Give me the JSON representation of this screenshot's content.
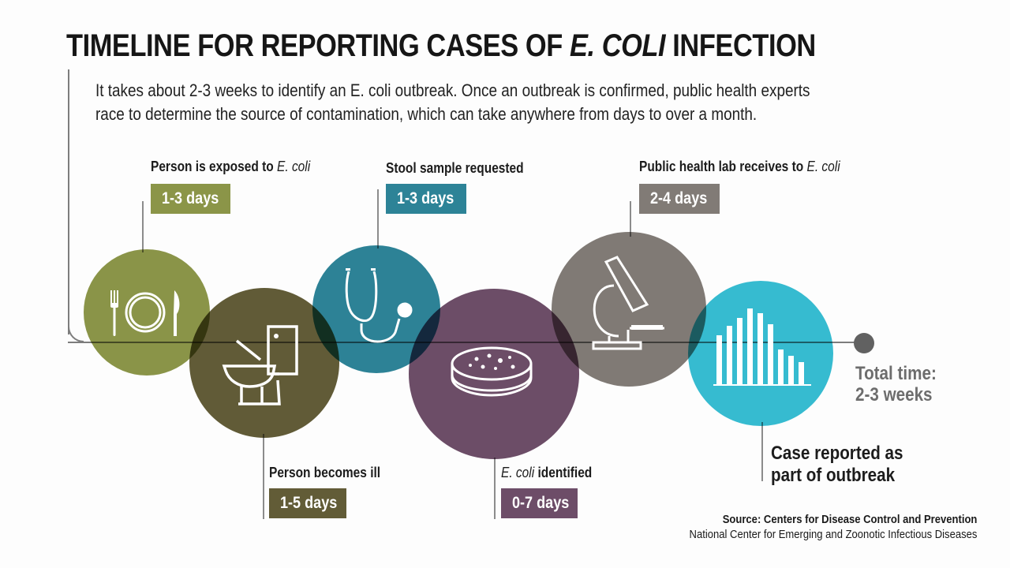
{
  "title_prefix": "TIMELINE FOR REPORTING CASES OF ",
  "title_italic": "E. COLI",
  "title_suffix": " INFECTION",
  "intro": "It takes about 2-3 weeks to identify an E. coli outbreak. Once an outbreak is confirmed, public health experts race to determine the source of contamination, which can take anywhere from days to over a month.",
  "stages": [
    {
      "label": "Person is exposed to ",
      "label_italic": "E. coli",
      "duration": "1-3 days",
      "color": "#8b9548",
      "icon": "utensils-plate-icon"
    },
    {
      "label": "Person becomes ill",
      "label_italic": "",
      "duration": "1-5 days",
      "color": "#625c37",
      "icon": "toilet-icon"
    },
    {
      "label": "Stool sample requested",
      "label_italic": "",
      "duration": "1-3 days",
      "color": "#2d8397",
      "icon": "stethoscope-icon"
    },
    {
      "label_italic": "E. coli",
      "label": " identified",
      "duration": "0-7 days",
      "color": "#6d4d68",
      "icon": "petri-dish-icon"
    },
    {
      "label": "Public health lab receives to ",
      "label_italic": "E. coli",
      "duration": "2-4 days",
      "color": "#817b76",
      "icon": "microscope-icon"
    }
  ],
  "final_stage": {
    "label_line1": "Case reported as",
    "label_line2": "part of outbreak",
    "color": "#36bdd2",
    "icon": "bar-chart-icon"
  },
  "total_time": {
    "line1": "Total time:",
    "line2": "2-3 weeks"
  },
  "source": {
    "line1": "Source: Centers for Disease Control and Prevention",
    "line2": "National Center for Emerging and Zoonotic Infectious Diseases"
  }
}
